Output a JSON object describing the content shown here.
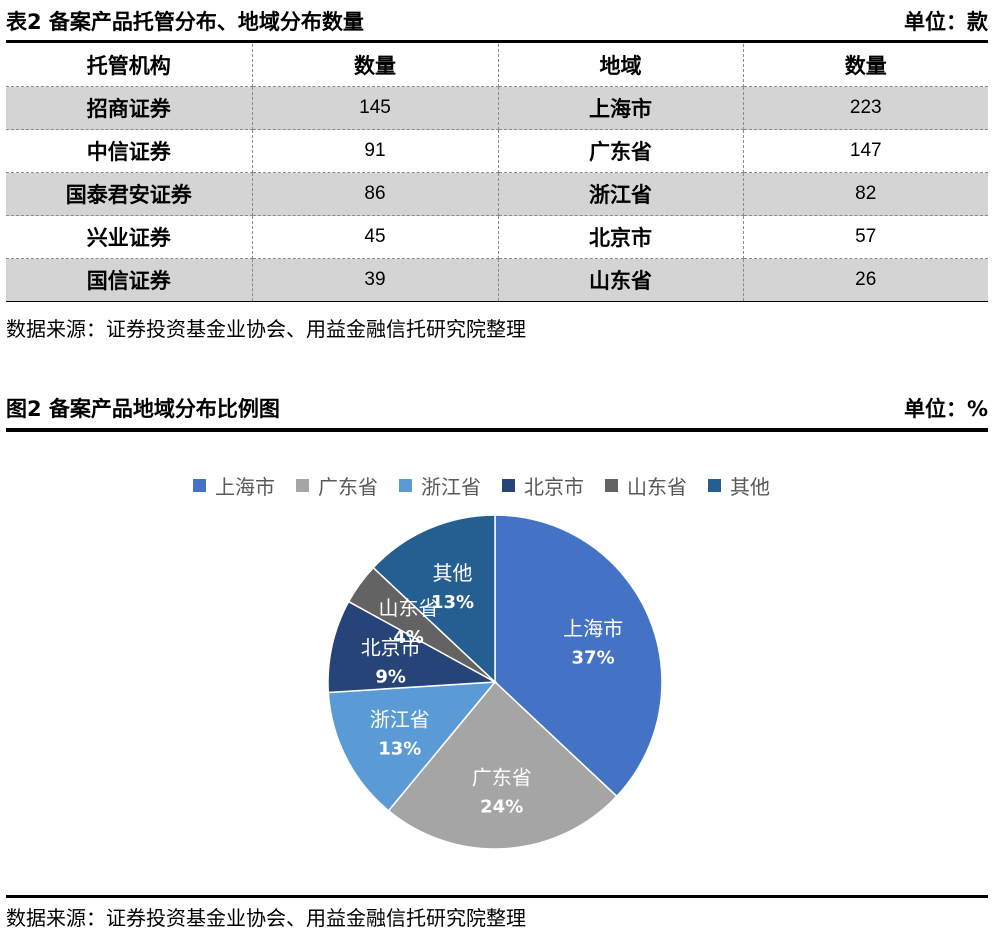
{
  "table2": {
    "title": "表2 备案产品托管分布、地域分布数量",
    "unit": "单位：款",
    "headers": [
      "托管机构",
      "数量",
      "地域",
      "数量"
    ],
    "rows": [
      [
        "招商证券",
        "145",
        "上海市",
        "223"
      ],
      [
        "中信证券",
        "91",
        "广东省",
        "147"
      ],
      [
        "国泰君安证券",
        "86",
        "浙江省",
        "82"
      ],
      [
        "兴业证券",
        "45",
        "北京市",
        "57"
      ],
      [
        "国信证券",
        "39",
        "山东省",
        "26"
      ]
    ],
    "source": "数据来源：证券投资基金业协会、用益金融信托研究院整理"
  },
  "figure2": {
    "title": "图2 备案产品地域分布比例图",
    "unit": "单位：%",
    "source": "数据来源：证券投资基金业协会、用益金融信托研究院整理"
  },
  "chart_data": {
    "type": "pie",
    "title": "",
    "categories": [
      "上海市",
      "广东省",
      "浙江省",
      "北京市",
      "山东省",
      "其他"
    ],
    "values": [
      37,
      24,
      13,
      9,
      4,
      13
    ],
    "value_labels": [
      "37%",
      "24%",
      "13%",
      "9%",
      "4%",
      "13%"
    ],
    "colors": [
      "#4472c4",
      "#a5a5a5",
      "#5b9bd5",
      "#264478",
      "#636363",
      "#255e91"
    ],
    "legend_position": "top"
  }
}
